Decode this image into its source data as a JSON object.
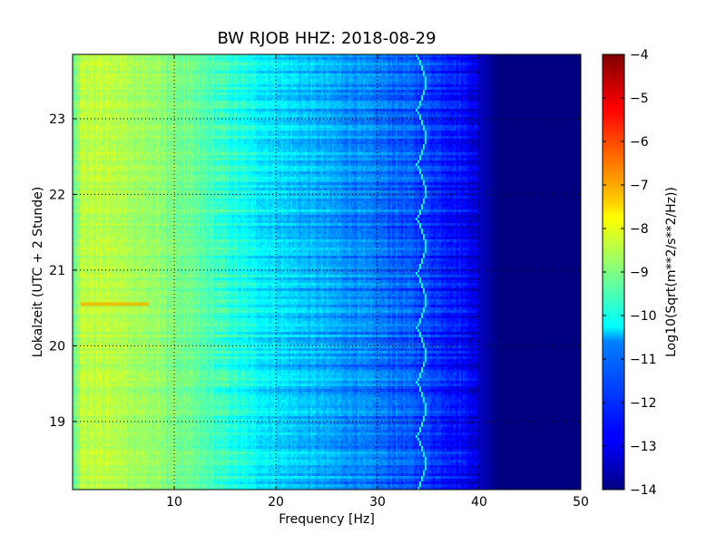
{
  "chart_data": {
    "type": "heatmap",
    "title": "BW RJOB HHZ: 2018-08-29",
    "xlabel": "Frequency [Hz]",
    "ylabel": "Lokalzeit (UTC + 2 Stunde)",
    "xlim": [
      0,
      50
    ],
    "ylim": [
      23.85,
      18.1
    ],
    "x_ticks": [
      10,
      20,
      30,
      40,
      50
    ],
    "y_ticks": [
      19,
      20,
      21,
      22,
      23
    ],
    "grid": true,
    "colormap": "jet",
    "colorbar": {
      "label": "Log10(Sqrt(m**2/s**2/Hz))",
      "range": [
        -14,
        -4
      ],
      "ticks": [
        -14,
        -13,
        -12,
        -11,
        -10,
        -9,
        -8,
        -7,
        -6,
        -5,
        -4
      ]
    },
    "spectrum_profile": {
      "frequencies_hz": [
        0,
        1,
        3,
        6,
        10,
        14,
        18,
        22,
        26,
        30,
        33,
        36,
        39,
        40,
        42,
        45,
        50
      ],
      "log10_amplitude": [
        -9.2,
        -8.4,
        -8.4,
        -8.6,
        -9.0,
        -9.6,
        -10.3,
        -10.8,
        -11.2,
        -11.6,
        -11.9,
        -12.3,
        -12.8,
        -13.3,
        -14,
        -14,
        -14
      ]
    },
    "features": [
      {
        "label": "",
        "x_hz": 34.3,
        "time_h": 20.55
      }
    ]
  }
}
